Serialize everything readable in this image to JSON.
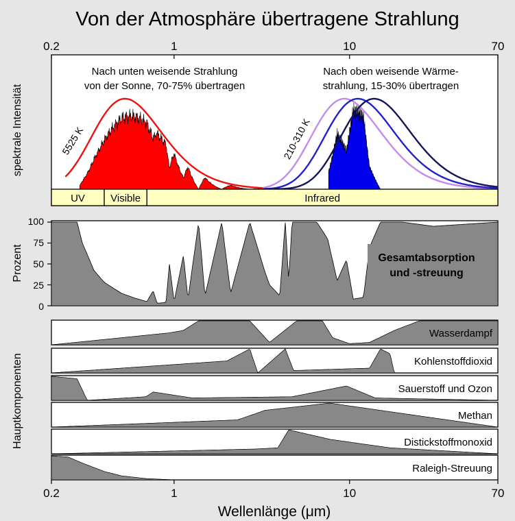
{
  "title": "Von der Atmosphäre übertragene Strahlung",
  "xlabel": "Wellenlänge (μm)",
  "x_ticks": [
    "0.2",
    "1",
    "10",
    "70"
  ],
  "x_tick_values": [
    0.2,
    1,
    10,
    70
  ],
  "top_panel": {
    "ylabel": "spektrale Intensität",
    "annotation_left_line1": "Nach unten weisende Strahlung",
    "annotation_left_line2": "von der Sonne, 70-75% übertragen",
    "annotation_right_line1": "Nach oben weisende Wärme-",
    "annotation_right_line2": "strahlung, 15-30% übertragen",
    "curve_label_sun": "5525 K",
    "curve_label_earth": "210-310 K",
    "bands": [
      {
        "label": "UV",
        "from": 0.2,
        "to": 0.4
      },
      {
        "label": "Visible",
        "from": 0.4,
        "to": 0.7
      },
      {
        "label": "Infrared",
        "from": 0.7,
        "to": 70
      }
    ]
  },
  "total_panel": {
    "ylabel": "Prozent",
    "label": "Gesamtabsorption\nund -streuung",
    "label_line1": "Gesamtabsorption",
    "label_line2": "und -streuung",
    "y_ticks": [
      "100",
      "75",
      "50",
      "25",
      "0"
    ],
    "ylim": [
      0,
      100
    ]
  },
  "components_ylabel": "Hauptkomponenten",
  "components": [
    {
      "key": "water",
      "label": "Wasserdampf"
    },
    {
      "key": "co2",
      "label": "Kohlenstoffdioxid"
    },
    {
      "key": "o2o3",
      "label": "Sauerstoff und Ozon"
    },
    {
      "key": "ch4",
      "label": "Methan"
    },
    {
      "key": "n2o",
      "label": "Distickstoffmonoxid"
    },
    {
      "key": "rayleigh",
      "label": "Raleigh-Streuung"
    }
  ],
  "colors": {
    "background": "#e6e6e6",
    "sun_curve": "#ee1111",
    "sun_fill": "#ff0000",
    "earth_fill": "#0000ee",
    "earth_curves": [
      "#c58aed",
      "#2020cc",
      "#14145a"
    ],
    "band_fill": "#ffffc0",
    "absorption_fill": "#888888"
  },
  "chart_data": {
    "type": "area",
    "x_scale": "log",
    "xlim": [
      0.2,
      70
    ],
    "x_unit": "μm",
    "series": [
      {
        "name": "Gesamtabsorption und -streuung",
        "unit": "%",
        "points": [
          [
            0.2,
            100
          ],
          [
            0.28,
            100
          ],
          [
            0.3,
            75
          ],
          [
            0.35,
            42
          ],
          [
            0.4,
            28
          ],
          [
            0.5,
            15
          ],
          [
            0.6,
            9
          ],
          [
            0.7,
            5
          ],
          [
            0.76,
            18
          ],
          [
            0.8,
            3
          ],
          [
            0.9,
            4
          ],
          [
            0.94,
            50
          ],
          [
            1.0,
            5
          ],
          [
            1.13,
            60
          ],
          [
            1.2,
            8
          ],
          [
            1.38,
            100
          ],
          [
            1.5,
            12
          ],
          [
            1.87,
            100
          ],
          [
            2.1,
            15
          ],
          [
            2.7,
            100
          ],
          [
            3.3,
            40
          ],
          [
            3.5,
            25
          ],
          [
            4.0,
            12
          ],
          [
            4.3,
            100
          ],
          [
            4.5,
            30
          ],
          [
            4.7,
            100
          ],
          [
            5.5,
            100
          ],
          [
            6.5,
            100
          ],
          [
            7.5,
            80
          ],
          [
            8.5,
            30
          ],
          [
            9.6,
            55
          ],
          [
            10.5,
            8
          ],
          [
            12,
            10
          ],
          [
            13,
            70
          ],
          [
            15,
            100
          ],
          [
            20,
            100
          ],
          [
            30,
            95
          ],
          [
            70,
            100
          ]
        ]
      },
      {
        "name": "Wasserdampf",
        "points": [
          [
            0.2,
            0
          ],
          [
            0.94,
            50
          ],
          [
            1.13,
            60
          ],
          [
            1.38,
            100
          ],
          [
            1.87,
            100
          ],
          [
            2.7,
            100
          ],
          [
            3.5,
            10
          ],
          [
            5,
            100
          ],
          [
            7,
            100
          ],
          [
            8,
            30
          ],
          [
            10,
            5
          ],
          [
            13,
            10
          ],
          [
            18,
            60
          ],
          [
            25,
            100
          ],
          [
            70,
            100
          ]
        ]
      },
      {
        "name": "Kohlenstoffdioxid",
        "points": [
          [
            0.2,
            0
          ],
          [
            2.0,
            50
          ],
          [
            2.7,
            100
          ],
          [
            3.0,
            0
          ],
          [
            4.3,
            100
          ],
          [
            4.8,
            10
          ],
          [
            13,
            20
          ],
          [
            15,
            100
          ],
          [
            17,
            80
          ],
          [
            18,
            0
          ],
          [
            70,
            0
          ]
        ]
      },
      {
        "name": "Sauerstoff und Ozon",
        "points": [
          [
            0.2,
            100
          ],
          [
            0.28,
            90
          ],
          [
            0.32,
            0
          ],
          [
            0.69,
            15
          ],
          [
            0.76,
            35
          ],
          [
            1.27,
            10
          ],
          [
            4.7,
            15
          ],
          [
            9.6,
            60
          ],
          [
            14,
            10
          ],
          [
            70,
            0
          ]
        ]
      },
      {
        "name": "Methan",
        "points": [
          [
            0.2,
            0
          ],
          [
            2.3,
            30
          ],
          [
            3.3,
            70
          ],
          [
            7.7,
            100
          ],
          [
            70,
            0
          ]
        ]
      },
      {
        "name": "Distickstoffmonoxid",
        "points": [
          [
            0.2,
            0
          ],
          [
            2.9,
            20
          ],
          [
            3.9,
            25
          ],
          [
            4.5,
            100
          ],
          [
            7.8,
            60
          ],
          [
            17,
            25
          ],
          [
            70,
            0
          ]
        ]
      },
      {
        "name": "Raleigh-Streuung",
        "points": [
          [
            0.2,
            100
          ],
          [
            0.25,
            95
          ],
          [
            0.3,
            70
          ],
          [
            0.4,
            35
          ],
          [
            0.5,
            17
          ],
          [
            0.7,
            5
          ],
          [
            1,
            0
          ],
          [
            70,
            0
          ]
        ]
      }
    ]
  }
}
